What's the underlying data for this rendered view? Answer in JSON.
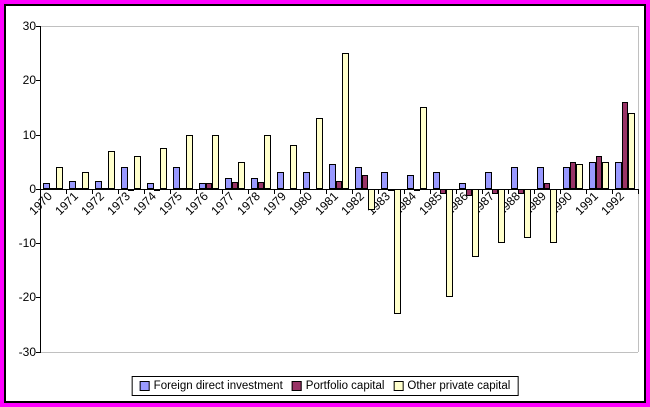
{
  "window": {
    "outer_border_color": "#FF00FF",
    "inner_border_color": "#000000",
    "background_color": "#FFFFFF"
  },
  "chart_data": {
    "type": "bar",
    "title": "",
    "xlabel": "",
    "ylabel": "",
    "categories": [
      "1970",
      "1971",
      "1972",
      "1973",
      "1974",
      "1975",
      "1976",
      "1977",
      "1978",
      "1979",
      "1980",
      "1981",
      "1982",
      "1983",
      "1984",
      "1985",
      "1986",
      "1987",
      "1988",
      "1989",
      "1990",
      "1991",
      "1992"
    ],
    "series": [
      {
        "name": "Foreign direct investment",
        "color": "#9999FF",
        "values": [
          1,
          1.5,
          1.5,
          4,
          1,
          4,
          1,
          2,
          2,
          3,
          3,
          4.5,
          4,
          3,
          2.5,
          3,
          1,
          3,
          4,
          4,
          4,
          5,
          5
        ]
      },
      {
        "name": "Portfolio capital",
        "color": "#993366",
        "values": [
          0.2,
          0.2,
          0.2,
          -0.4,
          -0.5,
          0.2,
          1,
          1.2,
          1.2,
          0,
          0,
          1.5,
          2.5,
          -0.5,
          -0.5,
          -1,
          -1.3,
          -1,
          -1,
          1,
          5,
          6,
          16
        ]
      },
      {
        "name": "Other private capital",
        "color": "#FFFFCC",
        "values": [
          4,
          3,
          7,
          6,
          7.5,
          10,
          10,
          5,
          10,
          8,
          13,
          25,
          -4,
          -23,
          15,
          -20,
          -12.5,
          -10,
          -9,
          -10,
          4.5,
          5,
          14
        ]
      }
    ],
    "ylim": [
      -30,
      30
    ],
    "yticks": [
      30,
      20,
      10,
      0,
      -10,
      -20,
      -30
    ],
    "grid": "horizontal lines at 30 and -30 only, plus right plot edge",
    "gridline_color": "#C0C0C0",
    "bar_border_color": "#000000",
    "legend_position": "bottom-center",
    "x_label_rotation_deg": 45
  }
}
